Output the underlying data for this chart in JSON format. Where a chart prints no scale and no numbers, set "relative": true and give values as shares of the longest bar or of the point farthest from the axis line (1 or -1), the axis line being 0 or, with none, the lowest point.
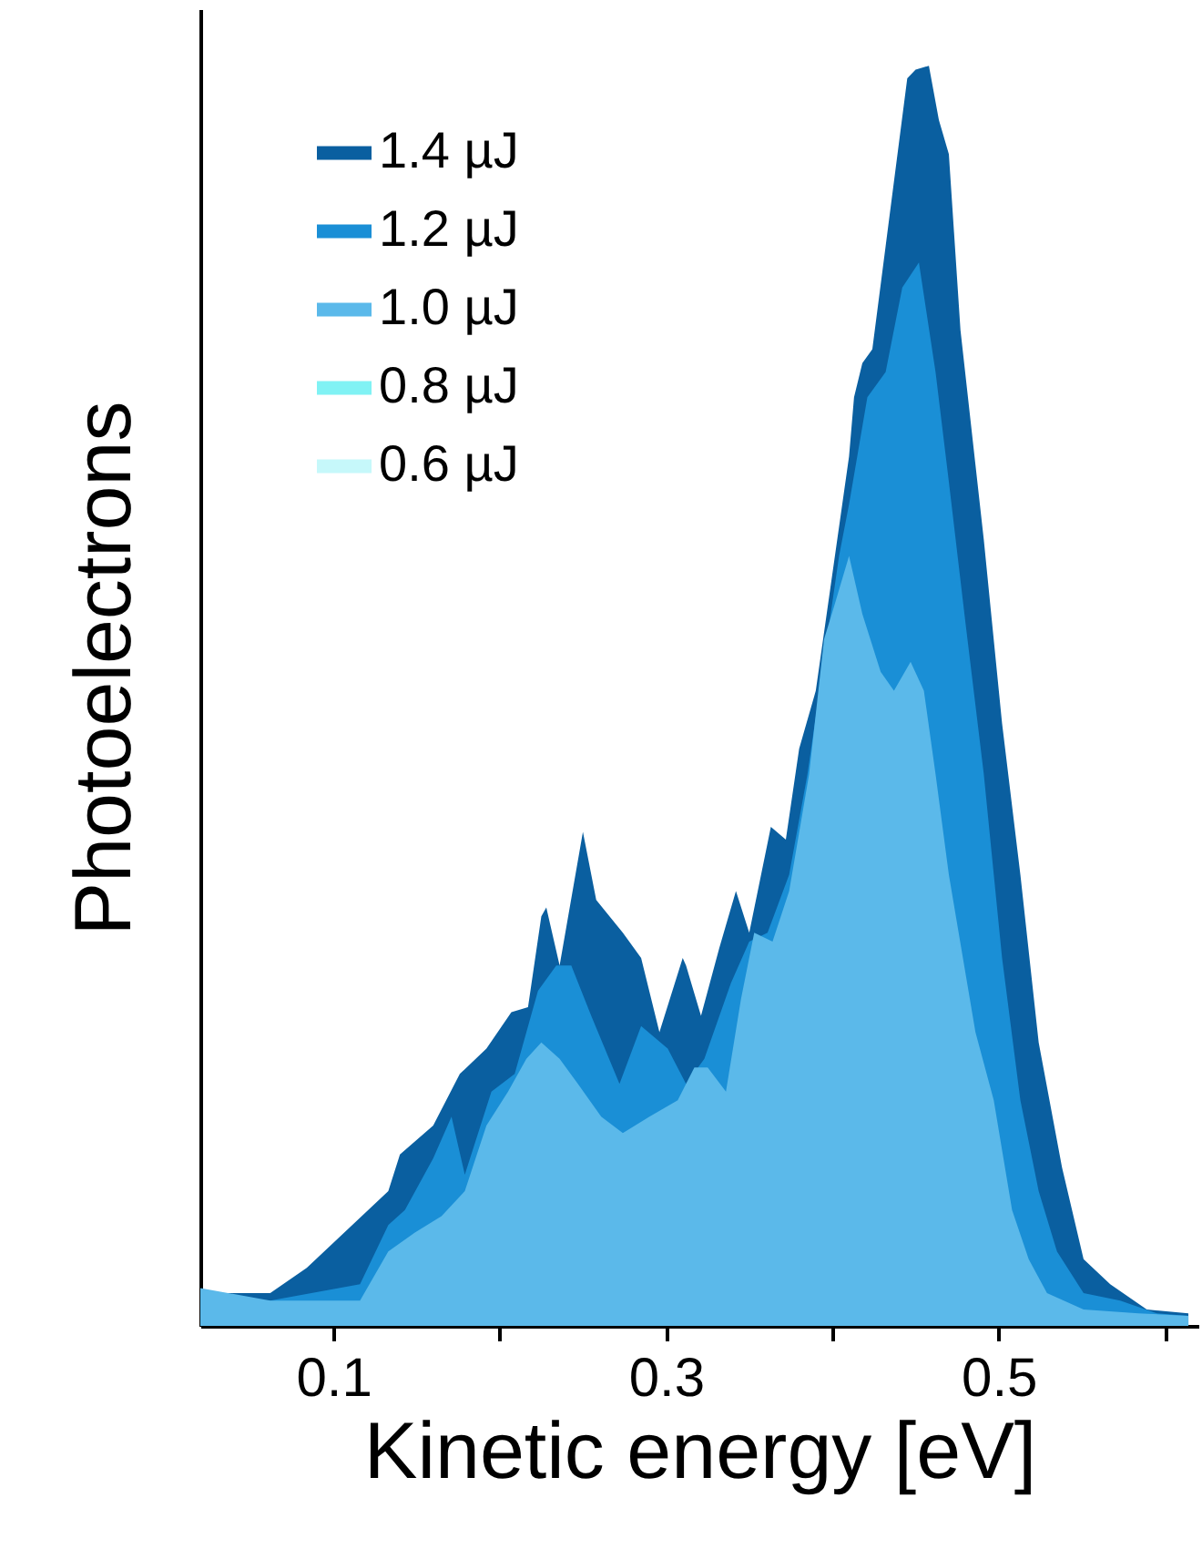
{
  "chart_data": {
    "type": "area",
    "xlabel": "Kinetic energy [eV]",
    "ylabel": "Photoelectrons",
    "relative": true,
    "xlim": [
      0.02,
      0.62
    ],
    "xticks": [
      0.1,
      {
        "value": 0.2,
        "label": null
      },
      0.3,
      {
        "value": 0.4,
        "label": null
      },
      0.5,
      {
        "value": 0.6,
        "label": null
      }
    ],
    "grid": false,
    "legend": "top left",
    "series": [
      {
        "name": "1.4 µJ",
        "color": "#0a5fa0",
        "x": [
          0.02,
          0.062,
          0.084,
          0.133,
          0.14,
          0.16,
          0.176,
          0.192,
          0.207,
          0.217,
          0.225,
          0.228,
          0.236,
          0.25,
          0.258,
          0.274,
          0.285,
          0.296,
          0.31,
          0.312,
          0.321,
          0.332,
          0.342,
          0.35,
          0.363,
          0.372,
          0.38,
          0.39,
          0.41,
          0.413,
          0.418,
          0.424,
          0.432,
          0.445,
          0.45,
          0.458,
          0.464,
          0.47,
          0.477,
          0.491,
          0.502,
          0.513,
          0.524,
          0.538,
          0.551,
          0.567,
          0.589,
          0.614
        ],
        "values": [
          0.026,
          0.026,
          0.046,
          0.107,
          0.136,
          0.159,
          0.2,
          0.22,
          0.249,
          0.253,
          0.325,
          0.332,
          0.286,
          0.392,
          0.338,
          0.312,
          0.292,
          0.233,
          0.292,
          0.286,
          0.246,
          0.3,
          0.345,
          0.312,
          0.396,
          0.386,
          0.458,
          0.504,
          0.69,
          0.737,
          0.764,
          0.775,
          0.857,
          0.99,
          0.997,
          1.0,
          0.957,
          0.93,
          0.79,
          0.624,
          0.478,
          0.358,
          0.225,
          0.126,
          0.053,
          0.033,
          0.013,
          0.01
        ]
      },
      {
        "name": "1.2 µJ",
        "color": "#1a8fd6",
        "x": [
          0.02,
          0.062,
          0.116,
          0.133,
          0.143,
          0.16,
          0.171,
          0.179,
          0.195,
          0.209,
          0.223,
          0.234,
          0.243,
          0.255,
          0.272,
          0.285,
          0.301,
          0.312,
          0.323,
          0.339,
          0.35,
          0.361,
          0.374,
          0.385,
          0.404,
          0.41,
          0.421,
          0.432,
          0.442,
          0.452,
          0.462,
          0.47,
          0.48,
          0.491,
          0.502,
          0.513,
          0.524,
          0.535,
          0.551,
          0.573,
          0.595,
          0.614
        ],
        "values": [
          0.02,
          0.02,
          0.033,
          0.08,
          0.092,
          0.133,
          0.166,
          0.12,
          0.186,
          0.2,
          0.266,
          0.286,
          0.286,
          0.246,
          0.192,
          0.238,
          0.22,
          0.192,
          0.212,
          0.272,
          0.305,
          0.312,
          0.358,
          0.438,
          0.611,
          0.652,
          0.737,
          0.757,
          0.824,
          0.844,
          0.757,
          0.67,
          0.558,
          0.438,
          0.292,
          0.179,
          0.107,
          0.059,
          0.026,
          0.02,
          0.01,
          0.008
        ]
      },
      {
        "name": "1.0 µJ",
        "color": "#5bb9ea",
        "x": [
          0.02,
          0.062,
          0.116,
          0.133,
          0.149,
          0.165,
          0.179,
          0.192,
          0.205,
          0.216,
          0.225,
          0.236,
          0.247,
          0.261,
          0.274,
          0.29,
          0.307,
          0.317,
          0.325,
          0.336,
          0.345,
          0.353,
          0.364,
          0.374,
          0.386,
          0.395,
          0.401,
          0.41,
          0.418,
          0.429,
          0.437,
          0.447,
          0.455,
          0.462,
          0.47,
          0.486,
          0.497,
          0.508,
          0.518,
          0.529,
          0.551,
          0.584,
          0.614
        ],
        "values": [
          0.03,
          0.02,
          0.02,
          0.059,
          0.074,
          0.087,
          0.107,
          0.159,
          0.186,
          0.212,
          0.225,
          0.212,
          0.192,
          0.166,
          0.153,
          0.166,
          0.179,
          0.205,
          0.205,
          0.186,
          0.259,
          0.312,
          0.305,
          0.345,
          0.438,
          0.545,
          0.571,
          0.611,
          0.565,
          0.519,
          0.504,
          0.527,
          0.504,
          0.438,
          0.358,
          0.233,
          0.179,
          0.092,
          0.053,
          0.026,
          0.013,
          0.01,
          0.008
        ]
      },
      {
        "name": "0.8 µJ",
        "color": "#80f2f4"
      },
      {
        "name": "0.6 µJ",
        "color": "#c6f8fa"
      }
    ]
  }
}
